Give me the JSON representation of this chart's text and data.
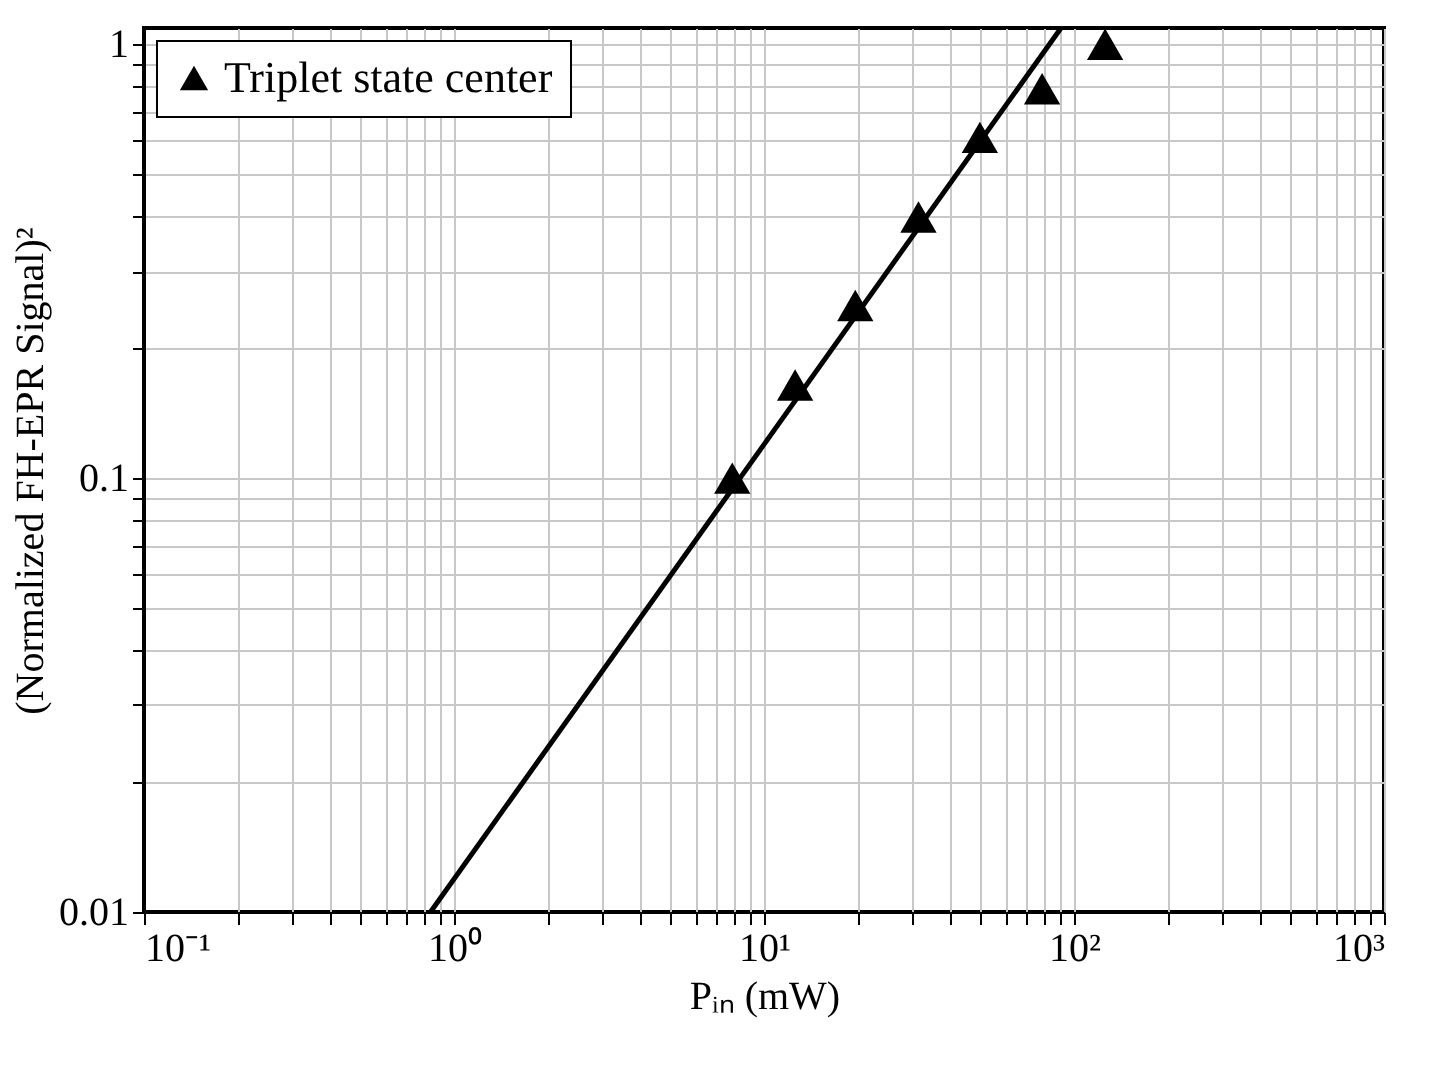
{
  "chart_data": {
    "type": "scatter",
    "xlabel": "Pᵢₙ (mW)",
    "ylabel": "(Normalized FH-EPR Signal)²",
    "log": "xy",
    "grid": true,
    "legend": "top left",
    "xlim": [
      0.1,
      1000
    ],
    "ylim": [
      0.01,
      1.09
    ],
    "xticks": [
      {
        "value": 0.1,
        "label": "10⁻¹"
      },
      {
        "value": 0.2,
        "label": null
      },
      {
        "value": 0.3,
        "label": null
      },
      {
        "value": 0.4,
        "label": null
      },
      {
        "value": 0.5,
        "label": null
      },
      {
        "value": 0.6,
        "label": null
      },
      {
        "value": 0.7,
        "label": null
      },
      {
        "value": 0.8,
        "label": null
      },
      {
        "value": 0.9,
        "label": null
      },
      {
        "value": 1,
        "label": "10⁰"
      },
      {
        "value": 2,
        "label": null
      },
      {
        "value": 3,
        "label": null
      },
      {
        "value": 4,
        "label": null
      },
      {
        "value": 5,
        "label": null
      },
      {
        "value": 6,
        "label": null
      },
      {
        "value": 7,
        "label": null
      },
      {
        "value": 8,
        "label": null
      },
      {
        "value": 9,
        "label": null
      },
      {
        "value": 10,
        "label": "10¹"
      },
      {
        "value": 20,
        "label": null
      },
      {
        "value": 30,
        "label": null
      },
      {
        "value": 40,
        "label": null
      },
      {
        "value": 50,
        "label": null
      },
      {
        "value": 60,
        "label": null
      },
      {
        "value": 70,
        "label": null
      },
      {
        "value": 80,
        "label": null
      },
      {
        "value": 90,
        "label": null
      },
      {
        "value": 100,
        "label": "10²"
      },
      {
        "value": 200,
        "label": null
      },
      {
        "value": 300,
        "label": null
      },
      {
        "value": 400,
        "label": null
      },
      {
        "value": 500,
        "label": null
      },
      {
        "value": 600,
        "label": null
      },
      {
        "value": 700,
        "label": null
      },
      {
        "value": 800,
        "label": null
      },
      {
        "value": 900,
        "label": null
      },
      {
        "value": 1000,
        "label": "10³"
      }
    ],
    "yticks": [
      {
        "value": 0.01,
        "label": "0.01"
      },
      {
        "value": 0.02,
        "label": null
      },
      {
        "value": 0.03,
        "label": null
      },
      {
        "value": 0.04,
        "label": null
      },
      {
        "value": 0.05,
        "label": null
      },
      {
        "value": 0.06,
        "label": null
      },
      {
        "value": 0.07,
        "label": null
      },
      {
        "value": 0.08,
        "label": null
      },
      {
        "value": 0.09,
        "label": null
      },
      {
        "value": 0.1,
        "label": "0.1"
      },
      {
        "value": 0.2,
        "label": null
      },
      {
        "value": 0.3,
        "label": null
      },
      {
        "value": 0.4,
        "label": null
      },
      {
        "value": 0.5,
        "label": null
      },
      {
        "value": 0.6,
        "label": null
      },
      {
        "value": 0.7,
        "label": null
      },
      {
        "value": 0.8,
        "label": null
      },
      {
        "value": 0.9,
        "label": null
      },
      {
        "value": 1,
        "label": "1"
      }
    ],
    "series": [
      {
        "name": "Triplet state center",
        "type": "scatter",
        "marker": "triangle",
        "color": "#000000",
        "x": [
          7.9,
          12.6,
          19.7,
          31.5,
          49.7,
          78.9,
          126
        ],
        "values": [
          0.1,
          0.164,
          0.25,
          0.4,
          0.61,
          0.79,
          1.0
        ]
      },
      {
        "type": "line",
        "color": "#000000",
        "line_style": "solid",
        "x": [
          0.84,
          90.8
        ],
        "values": [
          0.01,
          1.09
        ]
      }
    ]
  }
}
